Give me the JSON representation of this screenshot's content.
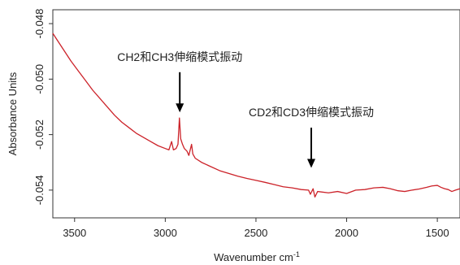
{
  "chart_data": {
    "type": "line",
    "title": "",
    "xlabel": "Wavenumber cm",
    "xlabel_superscript": "-1",
    "ylabel": "Absorbance Units",
    "xlim": [
      3620,
      1375
    ],
    "ylim": [
      -0.055,
      -0.0475
    ],
    "x_reversed": true,
    "grid": false,
    "legend": "none",
    "x_ticks": [
      "3500",
      "3000",
      "2500",
      "2000",
      "1500"
    ],
    "x_tick_values": [
      3500,
      3000,
      2500,
      2000,
      1500
    ],
    "y_ticks": [
      "-0.048",
      "-0.050",
      "-0.052",
      "-0.054"
    ],
    "y_tick_values": [
      -0.048,
      -0.05,
      -0.052,
      -0.054
    ],
    "series": [
      {
        "color": "#cc2229",
        "points": [
          [
            3620,
            -0.04835
          ],
          [
            3600,
            -0.04855
          ],
          [
            3560,
            -0.04895
          ],
          [
            3520,
            -0.04935
          ],
          [
            3480,
            -0.0497
          ],
          [
            3440,
            -0.05005
          ],
          [
            3400,
            -0.0504
          ],
          [
            3360,
            -0.0507
          ],
          [
            3320,
            -0.051
          ],
          [
            3280,
            -0.0513
          ],
          [
            3240,
            -0.05155
          ],
          [
            3200,
            -0.05175
          ],
          [
            3160,
            -0.05195
          ],
          [
            3120,
            -0.0521
          ],
          [
            3080,
            -0.05225
          ],
          [
            3040,
            -0.0524
          ],
          [
            3000,
            -0.0525
          ],
          [
            2980,
            -0.05255
          ],
          [
            2965,
            -0.05225
          ],
          [
            2955,
            -0.05255
          ],
          [
            2940,
            -0.0525
          ],
          [
            2930,
            -0.05235
          ],
          [
            2922,
            -0.0514
          ],
          [
            2915,
            -0.05215
          ],
          [
            2905,
            -0.05235
          ],
          [
            2895,
            -0.0525
          ],
          [
            2880,
            -0.0526
          ],
          [
            2870,
            -0.05275
          ],
          [
            2855,
            -0.05235
          ],
          [
            2848,
            -0.0527
          ],
          [
            2835,
            -0.05285
          ],
          [
            2800,
            -0.053
          ],
          [
            2750,
            -0.05315
          ],
          [
            2700,
            -0.0533
          ],
          [
            2650,
            -0.0534
          ],
          [
            2600,
            -0.0535
          ],
          [
            2550,
            -0.05358
          ],
          [
            2500,
            -0.05365
          ],
          [
            2450,
            -0.05372
          ],
          [
            2400,
            -0.0538
          ],
          [
            2350,
            -0.05388
          ],
          [
            2300,
            -0.05392
          ],
          [
            2250,
            -0.05398
          ],
          [
            2210,
            -0.054
          ],
          [
            2200,
            -0.05415
          ],
          [
            2185,
            -0.05395
          ],
          [
            2175,
            -0.05425
          ],
          [
            2160,
            -0.05405
          ],
          [
            2100,
            -0.0541
          ],
          [
            2050,
            -0.05405
          ],
          [
            2000,
            -0.05412
          ],
          [
            1950,
            -0.054
          ],
          [
            1900,
            -0.05398
          ],
          [
            1850,
            -0.05392
          ],
          [
            1800,
            -0.0539
          ],
          [
            1760,
            -0.05395
          ],
          [
            1720,
            -0.05402
          ],
          [
            1680,
            -0.05405
          ],
          [
            1640,
            -0.054
          ],
          [
            1600,
            -0.05396
          ],
          [
            1560,
            -0.0539
          ],
          [
            1530,
            -0.05385
          ],
          [
            1500,
            -0.05383
          ],
          [
            1480,
            -0.0539
          ],
          [
            1460,
            -0.05395
          ],
          [
            1440,
            -0.05398
          ],
          [
            1420,
            -0.05405
          ],
          [
            1400,
            -0.054
          ],
          [
            1375,
            -0.05395
          ]
        ]
      }
    ],
    "annotations": [
      {
        "text": "CH2和CH3伸缩模式振动",
        "arrow_x": 2920,
        "arrow_from_y": -0.04975,
        "arrow_to_y": -0.0512
      },
      {
        "text": "CD2和CD3伸缩模式振动",
        "arrow_x": 2195,
        "arrow_from_y": -0.05175,
        "arrow_to_y": -0.0532
      }
    ]
  }
}
